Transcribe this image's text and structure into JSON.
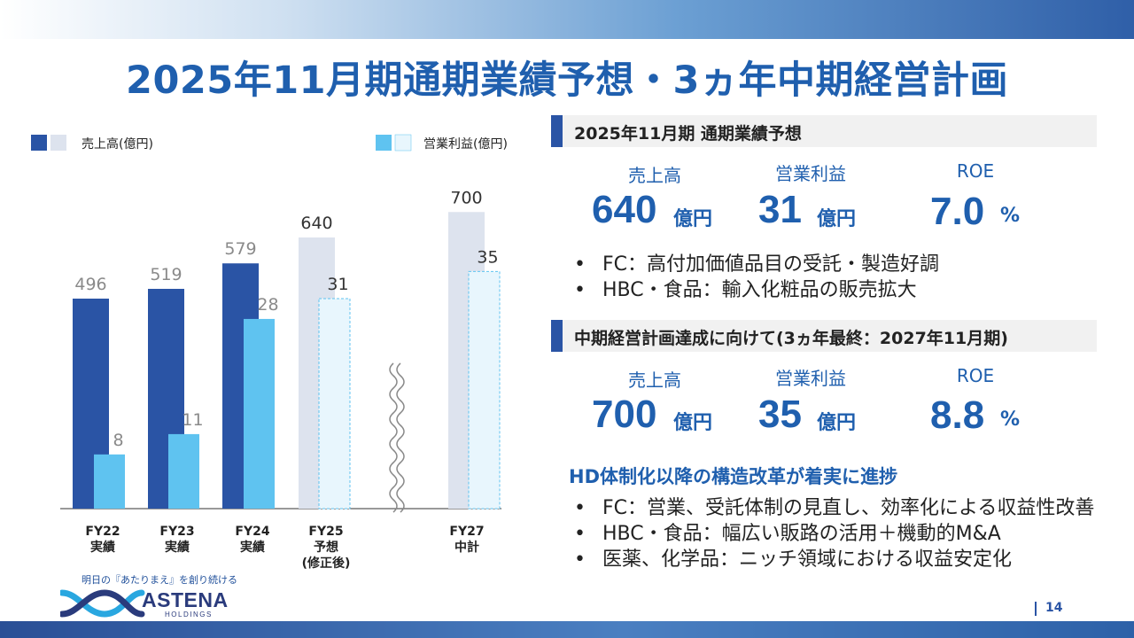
{
  "title": "2025年11月期通期業績予想・3ヵ年中期経営計画",
  "colors": {
    "sales_actual": "#2a54a5",
    "sales_plan": "#dde3ee",
    "profit_actual": "#5fc3f0",
    "profit_plan": "#e8f6fd",
    "accent": "#1f5fae"
  },
  "chart_data": {
    "type": "bar",
    "categories": [
      "FY22\n実績",
      "FY23\n実績",
      "FY24\n実績",
      "FY25\n予想\n(修正後)",
      "FY27\n中計"
    ],
    "series": [
      {
        "name": "売上高(億円)",
        "values": [
          496,
          519,
          579,
          640,
          700
        ]
      },
      {
        "name": "営業利益(億円)",
        "values": [
          8,
          11,
          28,
          31,
          35
        ]
      }
    ],
    "legend": [
      "売上高(億円)",
      "営業利益(億円)"
    ],
    "legend_position": "top",
    "projected_from_index": 3,
    "axis_break_before_index": 4,
    "notes": "Sales and operating profit plotted on separate scales; FY25 and FY27 shown as lighter planned bars"
  },
  "forecast": {
    "heading": "2025年11月期  通期業績予想",
    "kpis": [
      {
        "label": "売上高",
        "value": "640",
        "unit": "億円"
      },
      {
        "label": "営業利益",
        "value": "31",
        "unit": "億円"
      },
      {
        "label": "ROE",
        "value": "7.0",
        "unit": "%"
      }
    ],
    "bullets": [
      "FC：高付加価値品目の受託・製造好調",
      "HBC・食品：輸入化粧品の販売拡大"
    ]
  },
  "plan": {
    "heading": "中期経営計画達成に向けて(3ヵ年最終：2027年11月期)",
    "kpis": [
      {
        "label": "売上高",
        "value": "700",
        "unit": "億円"
      },
      {
        "label": "営業利益",
        "value": "35",
        "unit": "億円"
      },
      {
        "label": "ROE",
        "value": "8.8",
        "unit": "%"
      }
    ],
    "subheading": "HD体制化以降の構造改革が着実に進捗",
    "bullets": [
      "FC：営業、受託体制の見直し、効率化による収益性改善",
      "HBC・食品：幅広い販路の活用＋機動的M&A",
      "医薬、化学品：ニッチ領域における収益安定化"
    ]
  },
  "footer": {
    "tagline": "明日の『あたりまえ』を創り続ける",
    "logo_name": "ASTENA",
    "logo_sub": "HOLDINGS",
    "page_number": "14"
  }
}
